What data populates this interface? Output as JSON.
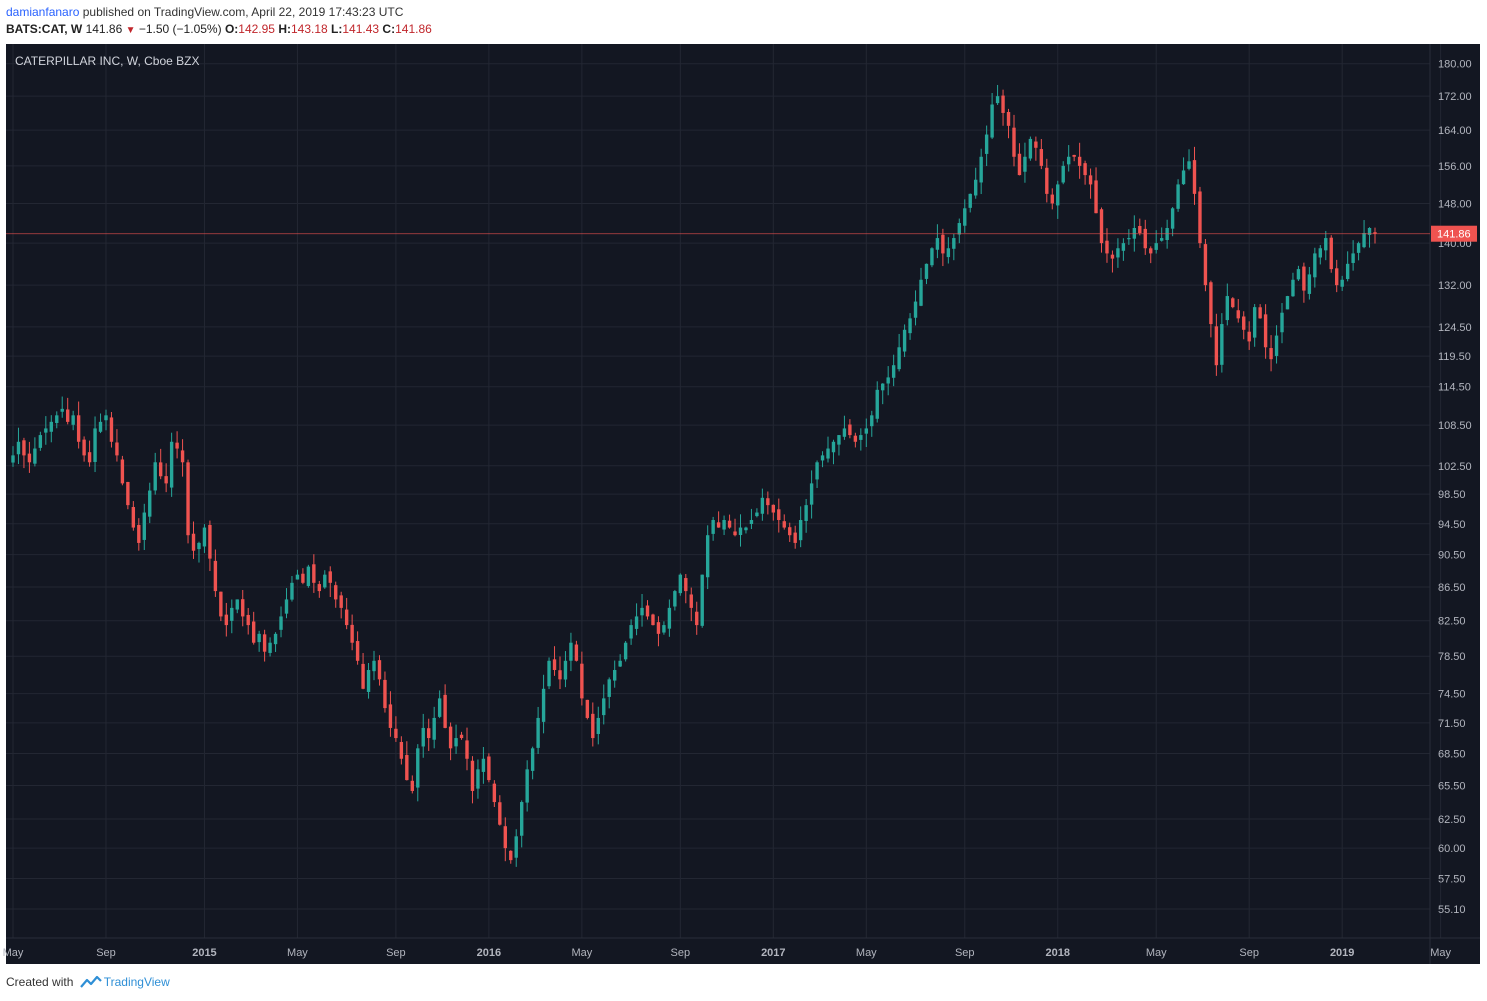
{
  "header": {
    "publisher": "damianfanaro",
    "published_text": "published on TradingView.com, April 22, 2019 17:43:23 UTC",
    "symbol": "BATS:CAT, W",
    "last_price": "141.86",
    "change": "−1.50 (−1.05%)",
    "open_label": "O:",
    "open": "142.95",
    "high_label": "H:",
    "high": "143.18",
    "low_label": "L:",
    "low": "141.43",
    "close_label": "C:",
    "close": "141.86"
  },
  "footer": {
    "created_with": "Created with",
    "brand": "TradingView"
  },
  "chart_data": {
    "type": "candlestick",
    "title": "CATERPILLAR INC, W, Cboe BZX",
    "interval": "weekly",
    "scale": "logarithmic",
    "ylim": [
      53.5,
      184
    ],
    "y_ticks": [
      "180.00",
      "172.00",
      "164.00",
      "156.00",
      "148.00",
      "140.00",
      "132.00",
      "124.50",
      "119.50",
      "114.50",
      "108.50",
      "102.50",
      "98.50",
      "94.50",
      "90.50",
      "86.50",
      "82.50",
      "78.50",
      "74.50",
      "71.50",
      "68.50",
      "65.50",
      "62.50",
      "60.00",
      "57.50",
      "55.10"
    ],
    "x_ticks": [
      "May",
      "Sep",
      "2015",
      "May",
      "Sep",
      "2016",
      "May",
      "Sep",
      "2017",
      "May",
      "Sep",
      "2018",
      "May",
      "Sep",
      "2019",
      "May"
    ],
    "last_price_marker": 141.86,
    "colors": {
      "background": "#131722",
      "up": "#26a69a",
      "down": "#ef5350",
      "grid": "#232733",
      "axis_text": "#b2b5be",
      "price_line": "#ef5350"
    },
    "closes": [
      104,
      106,
      104,
      103,
      105,
      107,
      108,
      109,
      110,
      111,
      109,
      110,
      106,
      104,
      103,
      108,
      109,
      110,
      106,
      104,
      100,
      97,
      94,
      92,
      96,
      99,
      103,
      101,
      100,
      106,
      105,
      103,
      93,
      91,
      92,
      94,
      90,
      86,
      83,
      82,
      84,
      85,
      83,
      82,
      80,
      81,
      79,
      80,
      81,
      83,
      85,
      87,
      88,
      87,
      89,
      87,
      86,
      88,
      87,
      85,
      84,
      82,
      80,
      78,
      75,
      77,
      78,
      76,
      73,
      71,
      70,
      68,
      66,
      65,
      69,
      71,
      70,
      72,
      74,
      71,
      69,
      70,
      70,
      68,
      65,
      67,
      68,
      66,
      64,
      62,
      60,
      59,
      61,
      64,
      67,
      69,
      72,
      75,
      78,
      77,
      76,
      78,
      80,
      78,
      74,
      72,
      70,
      72,
      74,
      76,
      77,
      78,
      80,
      82,
      83,
      84,
      83,
      82,
      81,
      82,
      84,
      86,
      88,
      86,
      84,
      82,
      88,
      93,
      95,
      94,
      95,
      94,
      93,
      94,
      94,
      95,
      96,
      98,
      97,
      96,
      95,
      94,
      93,
      92,
      95,
      97,
      100,
      103,
      104,
      105,
      106,
      107,
      108,
      107,
      106,
      107,
      108,
      110,
      114,
      115,
      116,
      118,
      121,
      124,
      126,
      129,
      133,
      136,
      139,
      141,
      138,
      139,
      141,
      144,
      147,
      150,
      153,
      158,
      163,
      170,
      172,
      168,
      165,
      158,
      154,
      158,
      162,
      160,
      156,
      150,
      148,
      152,
      156,
      158,
      158,
      156,
      154,
      152,
      146,
      140,
      138,
      137,
      139,
      140,
      141,
      143,
      142,
      139,
      138,
      140,
      141,
      143,
      147,
      152,
      155,
      157,
      150,
      140,
      132,
      125,
      118,
      125,
      130,
      128,
      126,
      124,
      122,
      128,
      126,
      121,
      119,
      123,
      127,
      130,
      133,
      135,
      131,
      134,
      138,
      139,
      141,
      135,
      132,
      133,
      136,
      138,
      140,
      142,
      143,
      141.86
    ]
  }
}
